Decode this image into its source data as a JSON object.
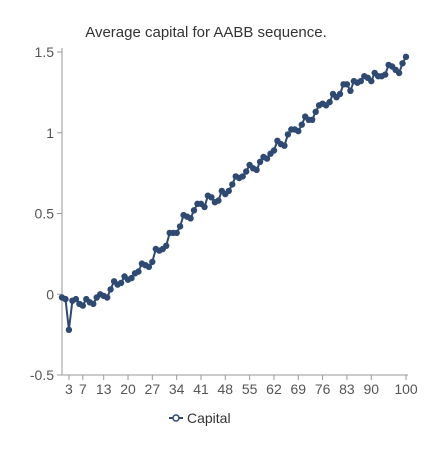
{
  "chart_data": {
    "type": "line",
    "title": "Average capital for AABB sequence.",
    "xlabel": "",
    "ylabel": "",
    "ylim": [
      -0.5,
      1.5
    ],
    "xlim": [
      1,
      100
    ],
    "y_ticks": [
      "1.5",
      "1",
      "0.5",
      "0",
      "-0.5"
    ],
    "x_ticks": [
      "3",
      "7",
      "13",
      "20",
      "27",
      "34",
      "41",
      "48",
      "55",
      "62",
      "69",
      "76",
      "83",
      "90",
      "100"
    ],
    "grid": false,
    "legend_position": "bottom-left",
    "series": [
      {
        "name": "Capital",
        "color": "#2e4a72",
        "x": [
          1,
          2,
          3,
          4,
          5,
          6,
          7,
          8,
          9,
          10,
          11,
          12,
          13,
          14,
          15,
          16,
          17,
          18,
          19,
          20,
          21,
          22,
          23,
          24,
          25,
          26,
          27,
          28,
          29,
          30,
          31,
          32,
          33,
          34,
          35,
          36,
          37,
          38,
          39,
          40,
          41,
          42,
          43,
          44,
          45,
          46,
          47,
          48,
          49,
          50,
          51,
          52,
          53,
          54,
          55,
          56,
          57,
          58,
          59,
          60,
          61,
          62,
          63,
          64,
          65,
          66,
          67,
          68,
          69,
          70,
          71,
          72,
          73,
          74,
          75,
          76,
          77,
          78,
          79,
          80,
          81,
          82,
          83,
          84,
          85,
          86,
          87,
          88,
          89,
          90,
          91,
          92,
          93,
          94,
          95,
          96,
          97,
          98,
          99,
          100
        ],
        "y": [
          -0.02,
          -0.03,
          -0.22,
          -0.04,
          -0.03,
          -0.06,
          -0.07,
          -0.03,
          -0.05,
          -0.06,
          -0.02,
          0.0,
          -0.01,
          -0.02,
          0.03,
          0.08,
          0.06,
          0.07,
          0.11,
          0.09,
          0.1,
          0.13,
          0.14,
          0.19,
          0.18,
          0.17,
          0.2,
          0.28,
          0.27,
          0.28,
          0.3,
          0.38,
          0.38,
          0.38,
          0.42,
          0.49,
          0.48,
          0.47,
          0.52,
          0.56,
          0.56,
          0.54,
          0.61,
          0.6,
          0.57,
          0.58,
          0.64,
          0.62,
          0.64,
          0.68,
          0.73,
          0.72,
          0.73,
          0.76,
          0.8,
          0.78,
          0.77,
          0.82,
          0.85,
          0.84,
          0.87,
          0.89,
          0.95,
          0.93,
          0.92,
          0.99,
          1.02,
          1.02,
          1.01,
          1.05,
          1.1,
          1.08,
          1.08,
          1.13,
          1.17,
          1.18,
          1.17,
          1.19,
          1.24,
          1.22,
          1.24,
          1.3,
          1.3,
          1.26,
          1.32,
          1.31,
          1.32,
          1.35,
          1.34,
          1.32,
          1.37,
          1.35,
          1.35,
          1.36,
          1.42,
          1.41,
          1.39,
          1.37,
          1.43,
          1.47
        ]
      }
    ]
  }
}
